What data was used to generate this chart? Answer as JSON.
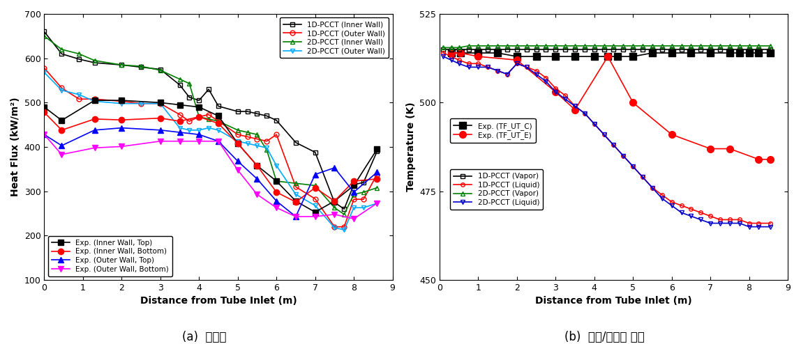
{
  "left": {
    "xlabel": "Distance from Tube Inlet (m)",
    "ylabel": "Heat Flux (kW/m²)",
    "xlim": [
      0,
      9
    ],
    "ylim": [
      100,
      700
    ],
    "yticks": [
      100,
      200,
      300,
      400,
      500,
      600,
      700
    ],
    "xticks": [
      0,
      1,
      2,
      3,
      4,
      5,
      6,
      7,
      8,
      9
    ],
    "series_order": [
      "1D_inner",
      "1D_outer",
      "2D_inner",
      "2D_outer",
      "exp_inner_top",
      "exp_inner_bot",
      "exp_outer_top",
      "exp_outer_bot"
    ],
    "series": {
      "1D_inner": {
        "x": [
          0.0,
          0.45,
          0.9,
          1.3,
          2.0,
          2.5,
          3.0,
          3.5,
          3.75,
          4.0,
          4.25,
          4.5,
          5.0,
          5.25,
          5.5,
          5.75,
          6.0,
          6.5,
          7.0,
          7.5,
          7.75,
          8.0,
          8.25,
          8.6
        ],
        "y": [
          660,
          610,
          598,
          590,
          585,
          580,
          575,
          540,
          512,
          505,
          530,
          492,
          480,
          480,
          475,
          470,
          460,
          410,
          388,
          275,
          260,
          315,
          320,
          390
        ],
        "color": "#000000",
        "marker": "s",
        "linestyle": "-",
        "label": "1D-PCCT (Inner Wall)",
        "markersize": 5,
        "fillstyle": "none"
      },
      "1D_outer": {
        "x": [
          0.0,
          0.45,
          0.9,
          1.3,
          2.0,
          2.5,
          3.0,
          3.5,
          3.75,
          4.0,
          4.25,
          4.5,
          5.0,
          5.25,
          5.5,
          5.75,
          6.0,
          6.5,
          7.0,
          7.5,
          7.75,
          8.0,
          8.25,
          8.6
        ],
        "y": [
          578,
          533,
          508,
          508,
          503,
          498,
          498,
          473,
          458,
          468,
          473,
          458,
          428,
          423,
          418,
          413,
          428,
          310,
          283,
          220,
          220,
          282,
          282,
          338
        ],
        "color": "#FF0000",
        "marker": "o",
        "linestyle": "-",
        "label": "1D-PCCT (Outer Wall)",
        "markersize": 5,
        "fillstyle": "none"
      },
      "2D_inner": {
        "x": [
          0.0,
          0.45,
          0.9,
          1.3,
          2.0,
          2.5,
          3.0,
          3.5,
          3.75,
          4.0,
          4.25,
          4.5,
          5.0,
          5.25,
          5.5,
          5.75,
          6.0,
          6.5,
          7.0,
          7.5,
          7.75,
          8.0,
          8.25,
          8.6
        ],
        "y": [
          650,
          620,
          610,
          595,
          585,
          582,
          573,
          553,
          543,
          468,
          463,
          458,
          438,
          433,
          428,
          393,
          323,
          318,
          313,
          263,
          248,
          293,
          298,
          308
        ],
        "color": "#008000",
        "marker": "^",
        "linestyle": "-",
        "label": "2D-PCCT (Inner Wall)",
        "markersize": 5,
        "fillstyle": "none"
      },
      "2D_outer": {
        "x": [
          0.0,
          0.45,
          0.9,
          1.3,
          2.0,
          2.5,
          3.0,
          3.5,
          3.75,
          4.0,
          4.25,
          4.5,
          5.0,
          5.25,
          5.5,
          5.75,
          6.0,
          6.5,
          7.0,
          7.5,
          7.75,
          8.0,
          8.25,
          8.6
        ],
        "y": [
          568,
          528,
          518,
          503,
          498,
          498,
          498,
          443,
          438,
          438,
          443,
          438,
          413,
          408,
          403,
          398,
          358,
          293,
          268,
          218,
          213,
          263,
          263,
          273
        ],
        "color": "#00AAFF",
        "marker": "v",
        "linestyle": "-",
        "label": "2D-PCCT (Outer Wall)",
        "markersize": 5,
        "fillstyle": "none"
      },
      "exp_inner_top": {
        "x": [
          0.0,
          0.45,
          1.3,
          2.0,
          3.0,
          3.5,
          4.0,
          4.5,
          5.0,
          5.5,
          6.0,
          6.5,
          7.0,
          7.5,
          8.0,
          8.6
        ],
        "y": [
          490,
          460,
          505,
          505,
          500,
          495,
          490,
          470,
          408,
          358,
          323,
          278,
          253,
          278,
          313,
          395
        ],
        "color": "#000000",
        "marker": "s",
        "linestyle": "-",
        "label": "Exp. (Inner Wall, Top)",
        "markersize": 6,
        "fillstyle": "full"
      },
      "exp_inner_bot": {
        "x": [
          0.0,
          0.45,
          1.3,
          2.0,
          3.0,
          3.5,
          4.0,
          4.5,
          5.0,
          5.5,
          6.0,
          6.5,
          7.0,
          7.5,
          8.0,
          8.6
        ],
        "y": [
          478,
          438,
          463,
          461,
          465,
          458,
          468,
          453,
          408,
          358,
          298,
          276,
          308,
          278,
          323,
          328
        ],
        "color": "#FF0000",
        "marker": "o",
        "linestyle": "-",
        "label": "Exp. (Inner Wall, Bottom)",
        "markersize": 6,
        "fillstyle": "full"
      },
      "exp_outer_top": {
        "x": [
          0.0,
          0.45,
          1.3,
          2.0,
          3.0,
          3.5,
          4.0,
          4.5,
          5.0,
          5.5,
          6.0,
          6.5,
          7.0,
          7.5,
          8.0,
          8.6
        ],
        "y": [
          428,
          403,
          438,
          443,
          438,
          433,
          428,
          413,
          368,
          328,
          278,
          243,
          338,
          353,
          298,
          343
        ],
        "color": "#0000FF",
        "marker": "^",
        "linestyle": "-",
        "label": "Exp. (Outer Wall, Top)",
        "markersize": 6,
        "fillstyle": "full"
      },
      "exp_outer_bot": {
        "x": [
          0.0,
          0.45,
          1.3,
          2.0,
          3.0,
          3.5,
          4.0,
          4.5,
          5.0,
          5.5,
          6.0,
          6.5,
          7.0,
          7.5,
          8.0,
          8.6
        ],
        "y": [
          428,
          383,
          398,
          401,
          413,
          413,
          413,
          413,
          348,
          293,
          263,
          243,
          243,
          248,
          238,
          273
        ],
        "color": "#FF00FF",
        "marker": "v",
        "linestyle": "-",
        "label": "Exp. (Outer Wall, Bottom)",
        "markersize": 6,
        "fillstyle": "full"
      }
    }
  },
  "right": {
    "xlabel": "Distance from Tube Inlet (m)",
    "ylabel": "Temperature (K)",
    "xlim": [
      0,
      9
    ],
    "ylim": [
      450,
      525
    ],
    "yticks": [
      450,
      475,
      500,
      525
    ],
    "xticks": [
      0,
      1,
      2,
      3,
      4,
      5,
      6,
      7,
      8,
      9
    ],
    "series_order": [
      "exp_tf_ut_c",
      "exp_tf_ut_e",
      "1D_vapor",
      "1D_liquid",
      "2D_vapor",
      "2D_liquid"
    ],
    "series": {
      "exp_tf_ut_c": {
        "x": [
          0.3,
          0.55,
          1.0,
          1.5,
          2.0,
          2.5,
          3.0,
          3.5,
          4.0,
          4.35,
          4.6,
          5.0,
          5.5,
          6.0,
          6.5,
          7.0,
          7.5,
          7.75,
          8.0,
          8.25,
          8.55
        ],
        "y": [
          514,
          514,
          514,
          514,
          513,
          513,
          513,
          513,
          513,
          513,
          513,
          513,
          514,
          514,
          514,
          514,
          514,
          514,
          514,
          514,
          514
        ],
        "color": "#000000",
        "marker": "s",
        "linestyle": "-",
        "label": "Exp. (TF_UT_C)",
        "markersize": 7,
        "fillstyle": "full"
      },
      "exp_tf_ut_e": {
        "x": [
          0.3,
          0.55,
          1.0,
          2.0,
          3.0,
          3.5,
          4.35,
          5.0,
          6.0,
          7.0,
          7.5,
          8.25,
          8.55
        ],
        "y": [
          514,
          514,
          513,
          512,
          503,
          498,
          513,
          500,
          491,
          487,
          487,
          484,
          484
        ],
        "color": "#FF0000",
        "marker": "o",
        "linestyle": "-",
        "label": "Exp. (TF_UT_E)",
        "markersize": 7,
        "fillstyle": "full"
      },
      "1D_vapor": {
        "x": [
          0.1,
          0.3,
          0.5,
          0.75,
          1.0,
          1.25,
          1.5,
          1.75,
          2.0,
          2.25,
          2.5,
          2.75,
          3.0,
          3.25,
          3.5,
          3.75,
          4.0,
          4.25,
          4.5,
          4.75,
          5.0,
          5.25,
          5.5,
          5.75,
          6.0,
          6.25,
          6.5,
          6.75,
          7.0,
          7.25,
          7.5,
          7.75,
          8.0,
          8.25,
          8.55
        ],
        "y": [
          515,
          515,
          515,
          515,
          515,
          515,
          515,
          515,
          515,
          515,
          515,
          515,
          515,
          515,
          515,
          515,
          515,
          515,
          515,
          515,
          515,
          515,
          515,
          515,
          515,
          515,
          515,
          515,
          515,
          515,
          515,
          515,
          515,
          515,
          515
        ],
        "color": "#000000",
        "marker": "s",
        "linestyle": "-",
        "label": "1D-PCCT (Vapor)",
        "markersize": 4,
        "fillstyle": "none"
      },
      "1D_liquid": {
        "x": [
          0.1,
          0.3,
          0.5,
          0.75,
          1.0,
          1.25,
          1.5,
          1.75,
          2.0,
          2.25,
          2.5,
          2.75,
          3.0,
          3.25,
          3.5,
          3.75,
          4.0,
          4.25,
          4.5,
          4.75,
          5.0,
          5.25,
          5.5,
          5.75,
          6.0,
          6.25,
          6.5,
          6.75,
          7.0,
          7.25,
          7.5,
          7.75,
          8.0,
          8.25,
          8.55
        ],
        "y": [
          514,
          513,
          512,
          511,
          511,
          510,
          509,
          508,
          511,
          510,
          509,
          507,
          504,
          502,
          499,
          497,
          494,
          491,
          488,
          485,
          482,
          479,
          476,
          474,
          472,
          471,
          470,
          469,
          468,
          467,
          467,
          467,
          466,
          466,
          466
        ],
        "color": "#FF0000",
        "marker": "o",
        "linestyle": "-",
        "label": "1D-PCCT (Liquid)",
        "markersize": 4,
        "fillstyle": "none"
      },
      "2D_vapor": {
        "x": [
          0.1,
          0.3,
          0.5,
          0.75,
          1.0,
          1.25,
          1.5,
          1.75,
          2.0,
          2.25,
          2.5,
          2.75,
          3.0,
          3.25,
          3.5,
          3.75,
          4.0,
          4.25,
          4.5,
          4.75,
          5.0,
          5.25,
          5.5,
          5.75,
          6.0,
          6.25,
          6.5,
          6.75,
          7.0,
          7.25,
          7.5,
          7.75,
          8.0,
          8.25,
          8.55
        ],
        "y": [
          515.5,
          515.5,
          515.5,
          516,
          516,
          516,
          516,
          516,
          516,
          516,
          516,
          516,
          516,
          516,
          516,
          516,
          516,
          516,
          516,
          516,
          516,
          516,
          516,
          516,
          516,
          516,
          516,
          516,
          516,
          516,
          516,
          516,
          516,
          516,
          516
        ],
        "color": "#008000",
        "marker": "^",
        "linestyle": "-",
        "label": "2D-PCCT (Vapor)",
        "markersize": 4,
        "fillstyle": "none"
      },
      "2D_liquid": {
        "x": [
          0.1,
          0.3,
          0.5,
          0.75,
          1.0,
          1.25,
          1.5,
          1.75,
          2.0,
          2.25,
          2.5,
          2.75,
          3.0,
          3.25,
          3.5,
          3.75,
          4.0,
          4.25,
          4.5,
          4.75,
          5.0,
          5.25,
          5.5,
          5.75,
          6.0,
          6.25,
          6.5,
          6.75,
          7.0,
          7.25,
          7.5,
          7.75,
          8.0,
          8.25,
          8.55
        ],
        "y": [
          513,
          512,
          511,
          510,
          510,
          510,
          509,
          508,
          511,
          510,
          508,
          506,
          503,
          501,
          499,
          497,
          494,
          491,
          488,
          485,
          482,
          479,
          476,
          473,
          471,
          469,
          468,
          467,
          466,
          466,
          466,
          466,
          465,
          465,
          465
        ],
        "color": "#0000CC",
        "marker": "v",
        "linestyle": "-",
        "label": "2D-PCCT (Liquid)",
        "markersize": 4,
        "fillstyle": "none"
      }
    }
  },
  "subtitle_left": "(a)  열유속",
  "subtitle_right": "(b)  증기/응축수 온도"
}
